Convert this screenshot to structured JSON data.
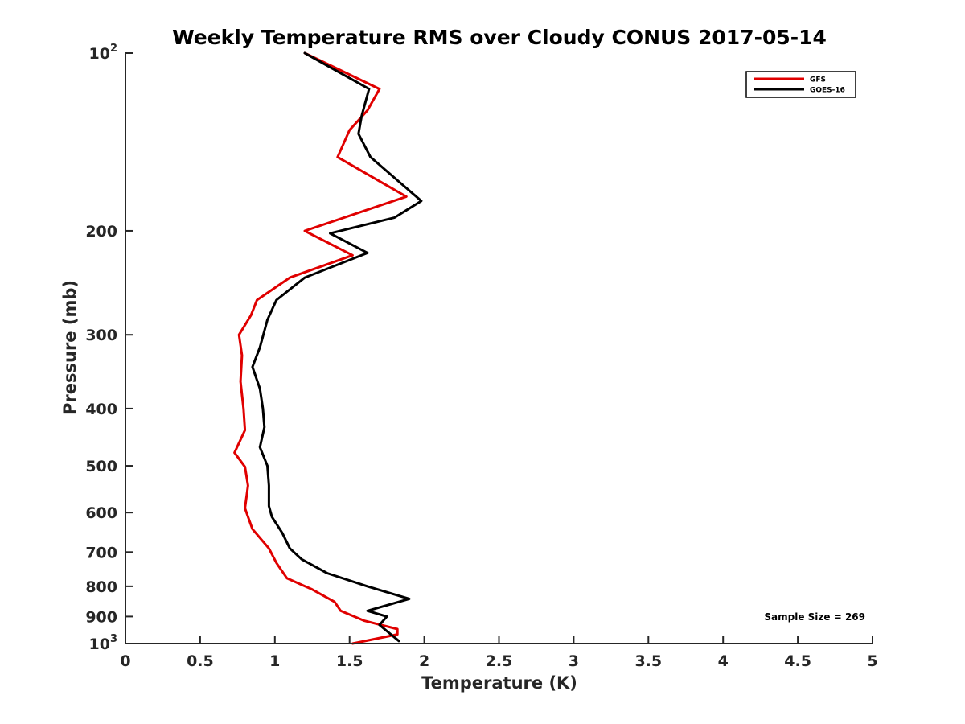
{
  "chart_data": {
    "type": "line",
    "title": "Weekly Temperature RMS over Cloudy CONUS 2017-05-14",
    "xlabel": "Temperature (K)",
    "ylabel": "Pressure (mb)",
    "xlim": [
      0,
      5
    ],
    "ylim": [
      100,
      1000
    ],
    "yscale": "log",
    "y_reversed": true,
    "x_ticks": [
      0,
      0.5,
      1,
      1.5,
      2,
      2.5,
      3,
      3.5,
      4,
      4.5,
      5
    ],
    "x_tick_labels": [
      "0",
      "0.5",
      "1",
      "1.5",
      "2",
      "2.5",
      "3",
      "3.5",
      "4",
      "4.5",
      "5"
    ],
    "y_ticks": [
      {
        "value": 100,
        "base": "10",
        "exp": "2"
      },
      {
        "value": 200,
        "label": "200"
      },
      {
        "value": 300,
        "label": "300"
      },
      {
        "value": 400,
        "label": "400"
      },
      {
        "value": 500,
        "label": "500"
      },
      {
        "value": 600,
        "label": "600"
      },
      {
        "value": 700,
        "label": "700"
      },
      {
        "value": 800,
        "label": "800"
      },
      {
        "value": 900,
        "label": "900"
      },
      {
        "value": 1000,
        "base": "10",
        "exp": "3"
      }
    ],
    "legend_position": "top-right",
    "series": [
      {
        "name": "GFS",
        "color": "#e00000",
        "points": [
          [
            1.2,
            100
          ],
          [
            1.7,
            115
          ],
          [
            1.62,
            125
          ],
          [
            1.5,
            135
          ],
          [
            1.42,
            150
          ],
          [
            1.88,
            175
          ],
          [
            1.2,
            200
          ],
          [
            1.52,
            220
          ],
          [
            1.1,
            240
          ],
          [
            0.88,
            262
          ],
          [
            0.84,
            278
          ],
          [
            0.76,
            300
          ],
          [
            0.78,
            325
          ],
          [
            0.77,
            360
          ],
          [
            0.79,
            400
          ],
          [
            0.8,
            435
          ],
          [
            0.73,
            475
          ],
          [
            0.8,
            502
          ],
          [
            0.82,
            540
          ],
          [
            0.8,
            590
          ],
          [
            0.85,
            640
          ],
          [
            0.96,
            690
          ],
          [
            1.01,
            730
          ],
          [
            1.08,
            775
          ],
          [
            1.25,
            810
          ],
          [
            1.4,
            850
          ],
          [
            1.44,
            880
          ],
          [
            1.6,
            915
          ],
          [
            1.82,
            945
          ],
          [
            1.82,
            965
          ],
          [
            1.52,
            1000
          ]
        ]
      },
      {
        "name": "GOES-16",
        "color": "#000000",
        "points": [
          [
            1.2,
            100
          ],
          [
            1.63,
            115
          ],
          [
            1.58,
            128
          ],
          [
            1.56,
            137
          ],
          [
            1.64,
            150
          ],
          [
            1.98,
            178
          ],
          [
            1.8,
            190
          ],
          [
            1.37,
            202
          ],
          [
            1.62,
            218
          ],
          [
            1.2,
            240
          ],
          [
            1.01,
            262
          ],
          [
            0.95,
            283
          ],
          [
            0.9,
            315
          ],
          [
            0.85,
            340
          ],
          [
            0.9,
            370
          ],
          [
            0.92,
            400
          ],
          [
            0.93,
            430
          ],
          [
            0.9,
            465
          ],
          [
            0.95,
            500
          ],
          [
            0.96,
            540
          ],
          [
            0.96,
            585
          ],
          [
            0.98,
            610
          ],
          [
            1.05,
            650
          ],
          [
            1.1,
            690
          ],
          [
            1.18,
            720
          ],
          [
            1.35,
            760
          ],
          [
            1.62,
            800
          ],
          [
            1.9,
            840
          ],
          [
            1.62,
            880
          ],
          [
            1.75,
            900
          ],
          [
            1.7,
            930
          ],
          [
            1.83,
            990
          ]
        ]
      }
    ],
    "annotation": "Sample Size = 269"
  }
}
